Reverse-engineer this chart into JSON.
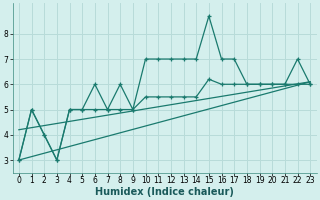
{
  "xlabel": "Humidex (Indice chaleur)",
  "background_color": "#d4efed",
  "grid_color": "#b8dbd9",
  "line_color": "#1a7a6e",
  "x_values": [
    0,
    1,
    2,
    3,
    4,
    5,
    6,
    7,
    8,
    9,
    10,
    11,
    12,
    13,
    14,
    15,
    16,
    17,
    18,
    19,
    20,
    21,
    22,
    23
  ],
  "series1": [
    3.0,
    5.0,
    4.0,
    3.0,
    5.0,
    5.0,
    6.0,
    5.0,
    6.0,
    5.0,
    7.0,
    7.0,
    7.0,
    7.0,
    7.0,
    8.7,
    7.0,
    7.0,
    6.0,
    6.0,
    6.0,
    6.0,
    7.0,
    6.0
  ],
  "series2": [
    3.0,
    5.0,
    4.0,
    3.0,
    5.0,
    5.0,
    5.0,
    5.0,
    5.0,
    5.0,
    5.5,
    5.5,
    5.5,
    5.5,
    5.5,
    6.2,
    6.0,
    6.0,
    6.0,
    6.0,
    6.0,
    6.0,
    6.0,
    6.0
  ],
  "series3_x": [
    0,
    23
  ],
  "series3_y": [
    3.0,
    6.1
  ],
  "series4_x": [
    0,
    23
  ],
  "series4_y": [
    4.2,
    6.1
  ],
  "xlim": [
    -0.5,
    23.5
  ],
  "ylim": [
    2.5,
    9.2
  ],
  "yticks": [
    3,
    4,
    5,
    6,
    7,
    8
  ],
  "xticks": [
    0,
    1,
    2,
    3,
    4,
    5,
    6,
    7,
    8,
    9,
    10,
    11,
    12,
    13,
    14,
    15,
    16,
    17,
    18,
    19,
    20,
    21,
    22,
    23
  ],
  "tick_fontsize": 5.5,
  "xlabel_fontsize": 7.0
}
